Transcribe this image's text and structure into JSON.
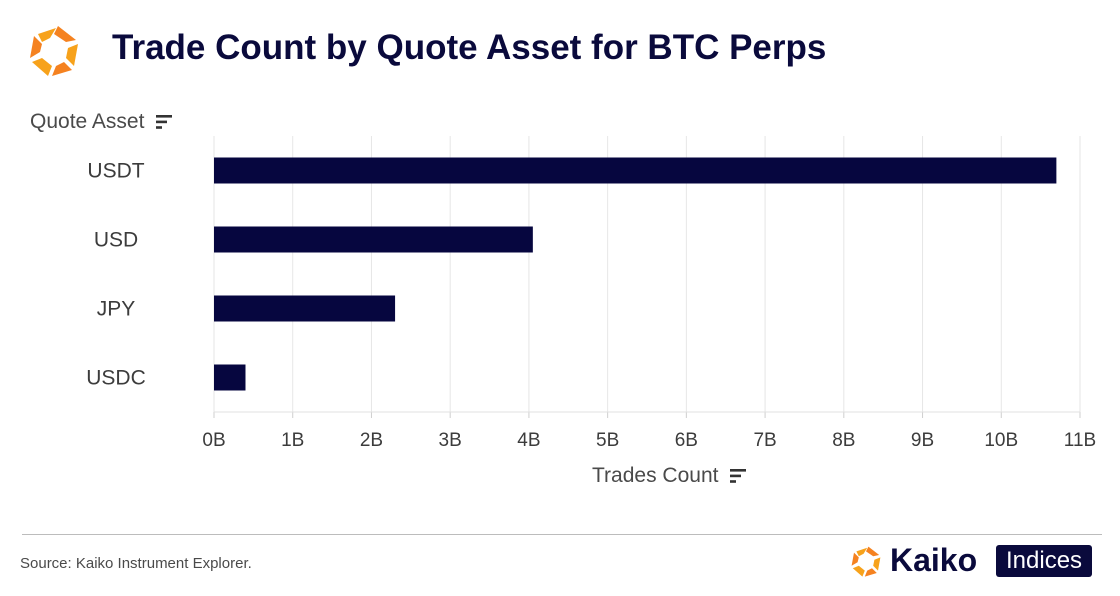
{
  "colors": {
    "title": "#0a0a3c",
    "bar": "#06063f",
    "grid": "#e6e6e6",
    "brand_orange": "#f5941e"
  },
  "chart_data": {
    "type": "bar",
    "orientation": "horizontal",
    "title": "Trade Count by Quote Asset for BTC Perps",
    "ylabel": "Quote Asset",
    "xlabel": "Trades Count",
    "categories": [
      "USDT",
      "USD",
      "JPY",
      "USDC"
    ],
    "values": [
      10700000000,
      4050000000,
      2300000000,
      400000000
    ],
    "xlim": [
      0,
      11000000000
    ],
    "xticks": [
      "0B",
      "1B",
      "2B",
      "3B",
      "4B",
      "5B",
      "6B",
      "7B",
      "8B",
      "9B",
      "10B",
      "11B"
    ],
    "grid": true,
    "legend": "none"
  },
  "footer": {
    "source": "Source: Kaiko Instrument Explorer.",
    "brand_name": "Kaiko",
    "brand_badge": "Indices"
  }
}
